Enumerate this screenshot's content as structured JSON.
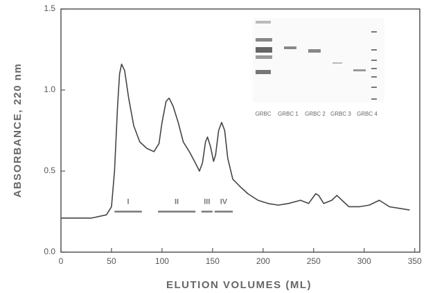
{
  "chart_data": {
    "type": "line",
    "x_label": "ELUTION VOLUMES (ML)",
    "y_label": "ABSORBANCE, 220 nm",
    "xlim": [
      0,
      355
    ],
    "ylim": [
      0,
      1.5
    ],
    "xticks": [
      0,
      50,
      100,
      150,
      200,
      250,
      300,
      350
    ],
    "yticks": [
      {
        "value": 0,
        "label": "0.0"
      },
      0.5,
      {
        "value": 1,
        "label": "1.0"
      },
      {
        "value": 1.5,
        "label": "1.5"
      }
    ],
    "color": "#444444",
    "x": [
      0,
      30,
      45,
      50,
      53,
      56,
      58,
      60,
      63,
      67,
      72,
      78,
      85,
      92,
      97,
      100,
      104,
      107,
      111,
      116,
      121,
      127,
      133,
      137,
      140,
      143,
      145,
      148,
      151,
      153,
      156,
      159,
      162,
      165,
      170,
      178,
      185,
      195,
      205,
      215,
      225,
      237,
      245,
      252,
      255,
      260,
      268,
      273,
      278,
      285,
      295,
      305,
      315,
      325,
      335,
      345
    ],
    "values": [
      0.21,
      0.21,
      0.23,
      0.28,
      0.5,
      0.9,
      1.1,
      1.16,
      1.12,
      0.95,
      0.78,
      0.68,
      0.64,
      0.62,
      0.67,
      0.8,
      0.93,
      0.95,
      0.9,
      0.8,
      0.68,
      0.62,
      0.55,
      0.5,
      0.55,
      0.68,
      0.71,
      0.65,
      0.56,
      0.6,
      0.75,
      0.8,
      0.75,
      0.58,
      0.45,
      0.4,
      0.36,
      0.32,
      0.3,
      0.29,
      0.3,
      0.32,
      0.3,
      0.36,
      0.35,
      0.3,
      0.32,
      0.35,
      0.32,
      0.28,
      0.28,
      0.29,
      0.32,
      0.28,
      0.27,
      0.26
    ],
    "fractions": [
      {
        "label": "I",
        "start": 53,
        "end": 80,
        "y": 0.25
      },
      {
        "label": "II",
        "start": 96,
        "end": 133,
        "y": 0.25
      },
      {
        "label": "III",
        "start": 139,
        "end": 150,
        "y": 0.25
      },
      {
        "label": "IV",
        "start": 152,
        "end": 170,
        "y": 0.25
      }
    ],
    "inset_lanes": [
      "GRBC",
      "GRBC 1",
      "GRBC 2",
      "GRBC 3",
      "GRBC 4"
    ]
  }
}
